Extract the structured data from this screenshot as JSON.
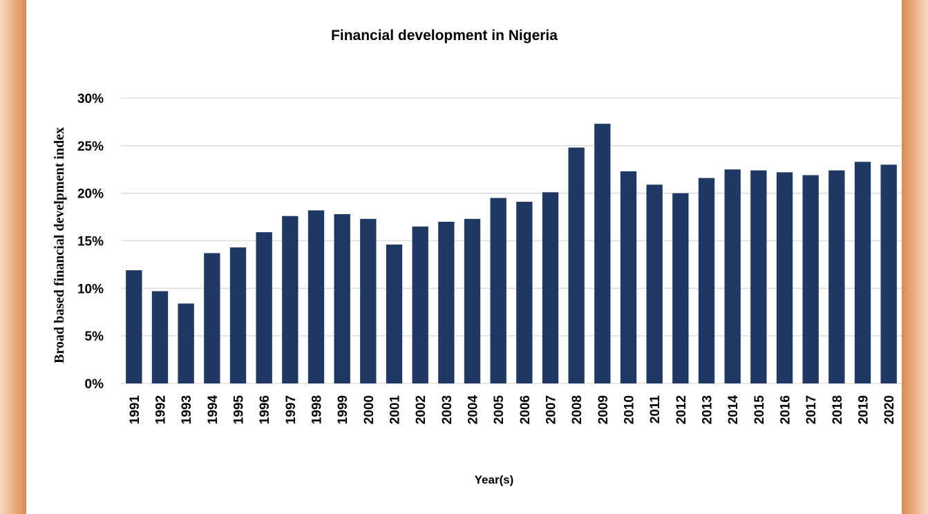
{
  "chart_data": {
    "type": "bar",
    "title": "Financial development in Nigeria",
    "x_label": "Year(s)",
    "y_label": "Broad based financial develpment index",
    "categories": [
      "1991",
      "1992",
      "1993",
      "1994",
      "1995",
      "1996",
      "1997",
      "1998",
      "1999",
      "2000",
      "2001",
      "2002",
      "2003",
      "2004",
      "2005",
      "2006",
      "2007",
      "2008",
      "2009",
      "2010",
      "2011",
      "2012",
      "2013",
      "2014",
      "2015",
      "2016",
      "2017",
      "2018",
      "2019",
      "2020"
    ],
    "values": [
      11.9,
      9.7,
      8.4,
      13.7,
      14.3,
      15.9,
      17.6,
      18.2,
      17.8,
      17.3,
      14.6,
      16.5,
      17.0,
      17.3,
      19.5,
      19.1,
      20.1,
      24.8,
      27.3,
      22.3,
      20.9,
      20.0,
      21.6,
      22.5,
      22.4,
      22.2,
      21.9,
      22.4,
      23.3,
      23.0
    ],
    "color": "#203864",
    "ylim": [
      0,
      30
    ],
    "yticks": [
      {
        "value": 0,
        "label": "0%"
      },
      {
        "value": 5,
        "label": "5%"
      },
      {
        "value": 10,
        "label": "10%"
      },
      {
        "value": 15,
        "label": "15%"
      },
      {
        "value": 20,
        "label": "20%"
      },
      {
        "value": 25,
        "label": "25%"
      },
      {
        "value": 30,
        "label": "30%"
      }
    ],
    "grid": true
  }
}
